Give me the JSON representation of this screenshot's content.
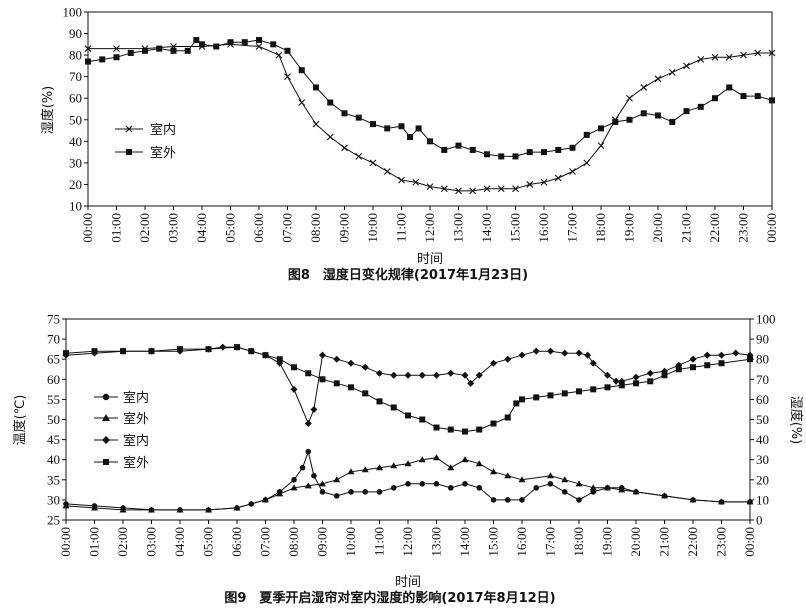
{
  "chart_data": [
    {
      "type": "line",
      "caption": "图8　湿度日变化规律(2017年1月23日)",
      "xlabel": "时间",
      "ylabel": "湿度(%)",
      "ylim": [
        10,
        100
      ],
      "yticks": [
        10,
        20,
        30,
        40,
        50,
        60,
        70,
        80,
        90,
        100
      ],
      "x_ticks": [
        "00:00",
        "01:00",
        "02:00",
        "03:00",
        "04:00",
        "05:00",
        "06:00",
        "07:00",
        "08:00",
        "09:00",
        "10:00",
        "11:00",
        "12:00",
        "13:00",
        "14:00",
        "15:00",
        "16:00",
        "17:00",
        "18:00",
        "19:00",
        "20:00",
        "21:00",
        "22:00",
        "23:00",
        "00:00"
      ],
      "legend_position": "left-middle",
      "series": [
        {
          "name": "室内",
          "marker": "x",
          "axis": "left",
          "points": [
            [
              0,
              83
            ],
            [
              1,
              83
            ],
            [
              2,
              83
            ],
            [
              3,
              84
            ],
            [
              4,
              84
            ],
            [
              5,
              85
            ],
            [
              6,
              84
            ],
            [
              6.7,
              80
            ],
            [
              7,
              70
            ],
            [
              7.5,
              58
            ],
            [
              8,
              48
            ],
            [
              8.5,
              42
            ],
            [
              9,
              37
            ],
            [
              9.5,
              33
            ],
            [
              10,
              30
            ],
            [
              10.5,
              26
            ],
            [
              11,
              22
            ],
            [
              11.5,
              21
            ],
            [
              12,
              19
            ],
            [
              12.5,
              18
            ],
            [
              13,
              17
            ],
            [
              13.5,
              17
            ],
            [
              14,
              18
            ],
            [
              14.5,
              18
            ],
            [
              15,
              18
            ],
            [
              15.5,
              20
            ],
            [
              16,
              21
            ],
            [
              16.5,
              23
            ],
            [
              17,
              26
            ],
            [
              17.5,
              30
            ],
            [
              18,
              38
            ],
            [
              18.5,
              50
            ],
            [
              19,
              60
            ],
            [
              19.5,
              65
            ],
            [
              20,
              69
            ],
            [
              20.5,
              72
            ],
            [
              21,
              75
            ],
            [
              21.5,
              78
            ],
            [
              22,
              79
            ],
            [
              22.5,
              79
            ],
            [
              23,
              80
            ],
            [
              23.5,
              81
            ],
            [
              24,
              81
            ]
          ]
        },
        {
          "name": "室外",
          "marker": "square",
          "axis": "left",
          "points": [
            [
              0,
              77
            ],
            [
              0.5,
              78
            ],
            [
              1,
              79
            ],
            [
              1.5,
              81
            ],
            [
              2,
              82
            ],
            [
              2.5,
              83
            ],
            [
              3,
              82
            ],
            [
              3.5,
              82
            ],
            [
              3.8,
              87
            ],
            [
              4,
              85
            ],
            [
              4.5,
              84
            ],
            [
              5,
              86
            ],
            [
              5.5,
              86
            ],
            [
              6,
              87
            ],
            [
              6.5,
              85
            ],
            [
              7,
              82
            ],
            [
              7.5,
              73
            ],
            [
              8,
              65
            ],
            [
              8.5,
              58
            ],
            [
              9,
              53
            ],
            [
              9.5,
              51
            ],
            [
              10,
              48
            ],
            [
              10.5,
              46
            ],
            [
              11,
              47
            ],
            [
              11.3,
              42
            ],
            [
              11.6,
              46
            ],
            [
              12,
              40
            ],
            [
              12.5,
              36
            ],
            [
              13,
              38
            ],
            [
              13.5,
              36
            ],
            [
              14,
              34
            ],
            [
              14.5,
              33
            ],
            [
              15,
              33
            ],
            [
              15.5,
              35
            ],
            [
              16,
              35
            ],
            [
              16.5,
              36
            ],
            [
              17,
              37
            ],
            [
              17.5,
              43
            ],
            [
              18,
              46
            ],
            [
              18.5,
              49
            ],
            [
              19,
              50
            ],
            [
              19.5,
              53
            ],
            [
              20,
              52
            ],
            [
              20.5,
              49
            ],
            [
              21,
              54
            ],
            [
              21.5,
              56
            ],
            [
              22,
              60
            ],
            [
              22.5,
              65
            ],
            [
              23,
              61
            ],
            [
              23.5,
              61
            ],
            [
              24,
              59
            ]
          ]
        }
      ]
    },
    {
      "type": "line",
      "caption": "图9　夏季开启湿帘对室内湿度的影响(2017年8月12日)",
      "xlabel": "时间",
      "ylabel_left": "温度(℃)",
      "ylabel_right": "湿度(%)",
      "ylim_left": [
        25,
        75
      ],
      "ylim_right": [
        0,
        100
      ],
      "yticks_left": [
        25,
        30,
        35,
        40,
        45,
        50,
        55,
        60,
        65,
        70,
        75
      ],
      "yticks_right": [
        0,
        10,
        20,
        30,
        40,
        50,
        60,
        70,
        80,
        90,
        100
      ],
      "x_ticks": [
        "00:00",
        "01:00",
        "02:00",
        "03:00",
        "04:00",
        "05:00",
        "06:00",
        "07:00",
        "08:00",
        "09:00",
        "10:00",
        "11:00",
        "12:00",
        "13:00",
        "14:00",
        "15:00",
        "16:00",
        "17:00",
        "18:00",
        "19:00",
        "20:00",
        "21:00",
        "22:00",
        "23:00",
        "00:00"
      ],
      "legend_position": "left-middle",
      "series": [
        {
          "name": "室内",
          "marker": "circle",
          "axis": "left",
          "points": [
            [
              0,
              29
            ],
            [
              1,
              28.5
            ],
            [
              2,
              28
            ],
            [
              3,
              27.5
            ],
            [
              4,
              27.5
            ],
            [
              5,
              27.5
            ],
            [
              6,
              28
            ],
            [
              6.5,
              29
            ],
            [
              7,
              30
            ],
            [
              7.5,
              32
            ],
            [
              8,
              35
            ],
            [
              8.3,
              38
            ],
            [
              8.5,
              42
            ],
            [
              8.7,
              36
            ],
            [
              9,
              32
            ],
            [
              9.5,
              31
            ],
            [
              10,
              32
            ],
            [
              10.5,
              32
            ],
            [
              11,
              32
            ],
            [
              11.5,
              33
            ],
            [
              12,
              34
            ],
            [
              12.5,
              34
            ],
            [
              13,
              34
            ],
            [
              13.5,
              33
            ],
            [
              14,
              34
            ],
            [
              14.5,
              33
            ],
            [
              15,
              30
            ],
            [
              15.5,
              30
            ],
            [
              16,
              30
            ],
            [
              16.5,
              33
            ],
            [
              17,
              34
            ],
            [
              17.5,
              32
            ],
            [
              18,
              30
            ],
            [
              18.5,
              32
            ],
            [
              19,
              33
            ],
            [
              19.5,
              33
            ],
            [
              20,
              32
            ],
            [
              21,
              31
            ],
            [
              22,
              30
            ],
            [
              23,
              29.5
            ],
            [
              24,
              29.5
            ]
          ]
        },
        {
          "name": "室外",
          "marker": "triangle",
          "axis": "left",
          "points": [
            [
              0,
              28.5
            ],
            [
              1,
              28
            ],
            [
              2,
              27.5
            ],
            [
              3,
              27.5
            ],
            [
              4,
              27.5
            ],
            [
              5,
              27.5
            ],
            [
              6,
              28
            ],
            [
              7,
              30
            ],
            [
              7.5,
              31.5
            ],
            [
              8,
              33
            ],
            [
              8.5,
              33.5
            ],
            [
              9,
              34
            ],
            [
              9.5,
              35
            ],
            [
              10,
              37
            ],
            [
              10.5,
              37.5
            ],
            [
              11,
              38
            ],
            [
              11.5,
              38.5
            ],
            [
              12,
              39
            ],
            [
              12.5,
              40
            ],
            [
              13,
              40.5
            ],
            [
              13.5,
              38
            ],
            [
              14,
              40
            ],
            [
              14.5,
              39
            ],
            [
              15,
              37
            ],
            [
              15.5,
              36
            ],
            [
              16,
              35
            ],
            [
              17,
              36
            ],
            [
              17.5,
              35
            ],
            [
              18,
              34
            ],
            [
              18.5,
              33
            ],
            [
              19,
              33
            ],
            [
              19.5,
              32.5
            ],
            [
              20,
              32
            ],
            [
              21,
              31
            ],
            [
              22,
              30
            ],
            [
              23,
              29.5
            ],
            [
              24,
              29.5
            ]
          ]
        },
        {
          "name": "室内",
          "marker": "diamond",
          "axis": "right",
          "points": [
            [
              0,
              82
            ],
            [
              1,
              83
            ],
            [
              2,
              84
            ],
            [
              3,
              84
            ],
            [
              4,
              84
            ],
            [
              5,
              85
            ],
            [
              5.5,
              86
            ],
            [
              6,
              86
            ],
            [
              6.5,
              84
            ],
            [
              7,
              82
            ],
            [
              7.5,
              78
            ],
            [
              8,
              65
            ],
            [
              8.5,
              48
            ],
            [
              8.7,
              55
            ],
            [
              9,
              82
            ],
            [
              9.5,
              80
            ],
            [
              10,
              78
            ],
            [
              10.5,
              76
            ],
            [
              11,
              73
            ],
            [
              11.5,
              72
            ],
            [
              12,
              72
            ],
            [
              12.5,
              72
            ],
            [
              13,
              72
            ],
            [
              13.5,
              73
            ],
            [
              14,
              72
            ],
            [
              14.2,
              68
            ],
            [
              14.5,
              72
            ],
            [
              15,
              78
            ],
            [
              15.5,
              80
            ],
            [
              16,
              82
            ],
            [
              16.5,
              84
            ],
            [
              17,
              84
            ],
            [
              17.5,
              83
            ],
            [
              18,
              83
            ],
            [
              18.3,
              82
            ],
            [
              18.5,
              78
            ],
            [
              19,
              72
            ],
            [
              19.3,
              69
            ],
            [
              19.5,
              69
            ],
            [
              20,
              71
            ],
            [
              20.5,
              73
            ],
            [
              21,
              74
            ],
            [
              21.5,
              77
            ],
            [
              22,
              80
            ],
            [
              22.5,
              82
            ],
            [
              23,
              82
            ],
            [
              23.5,
              83
            ],
            [
              24,
              82
            ]
          ]
        },
        {
          "name": "室外",
          "marker": "square",
          "axis": "right",
          "points": [
            [
              0,
              83
            ],
            [
              1,
              84
            ],
            [
              2,
              84
            ],
            [
              3,
              84
            ],
            [
              4,
              85
            ],
            [
              5,
              85
            ],
            [
              6,
              86
            ],
            [
              6.5,
              84
            ],
            [
              7,
              82
            ],
            [
              7.5,
              80
            ],
            [
              8,
              76
            ],
            [
              8.5,
              73
            ],
            [
              9,
              70
            ],
            [
              9.5,
              68
            ],
            [
              10,
              66
            ],
            [
              10.5,
              63
            ],
            [
              11,
              59
            ],
            [
              11.5,
              56
            ],
            [
              12,
              52
            ],
            [
              12.5,
              50
            ],
            [
              13,
              46
            ],
            [
              13.5,
              45
            ],
            [
              14,
              44
            ],
            [
              14.5,
              45
            ],
            [
              15,
              48
            ],
            [
              15.5,
              51
            ],
            [
              15.8,
              58
            ],
            [
              16,
              60
            ],
            [
              16.5,
              61
            ],
            [
              17,
              62
            ],
            [
              17.5,
              63
            ],
            [
              18,
              64
            ],
            [
              18.5,
              65
            ],
            [
              19,
              66
            ],
            [
              19.5,
              67
            ],
            [
              20,
              68
            ],
            [
              20.5,
              69
            ],
            [
              21,
              72
            ],
            [
              21.5,
              75
            ],
            [
              22,
              76
            ],
            [
              22.5,
              77
            ],
            [
              23,
              78
            ],
            [
              24,
              80
            ]
          ]
        }
      ]
    }
  ]
}
